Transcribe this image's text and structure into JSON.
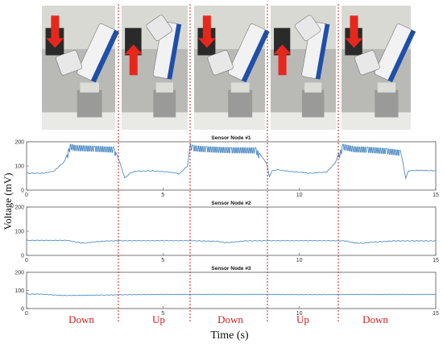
{
  "chart_data": [
    {
      "type": "line",
      "title": "Sensor Node #1",
      "xlim": [
        0,
        15
      ],
      "ylim": [
        0,
        200
      ],
      "xticks": [
        "0",
        "5",
        "10",
        "15"
      ],
      "yticks": [
        "0",
        "100",
        "200"
      ],
      "series": [
        {
          "x": [
            0,
            0.6,
            1.0,
            1.4,
            1.6,
            1.8,
            2.5,
            3.2,
            3.4,
            3.6,
            3.8,
            4.0,
            4.6,
            5.2,
            5.6,
            5.9,
            6.0,
            6.1,
            6.3,
            6.6,
            7.0,
            7.5,
            8.4,
            8.8,
            8.9,
            9.0,
            9.2,
            9.6,
            10.4,
            11.0,
            11.3,
            11.6,
            11.8,
            12.0,
            12.5,
            13.2,
            13.7,
            13.8,
            13.9,
            14.0,
            14.4,
            15.0
          ],
          "y": [
            70,
            70,
            78,
            120,
            190,
            185,
            182,
            178,
            120,
            50,
            70,
            78,
            80,
            75,
            68,
            100,
            190,
            185,
            182,
            180,
            178,
            176,
            175,
            110,
            55,
            80,
            85,
            78,
            70,
            75,
            110,
            190,
            185,
            180,
            178,
            172,
            165,
            110,
            50,
            80,
            82,
            80
          ]
        }
      ]
    },
    {
      "type": "line",
      "title": "Sensor Node #2",
      "xlim": [
        0,
        15
      ],
      "ylim": [
        0,
        200
      ],
      "xticks": [
        "0",
        "5",
        "10",
        "15"
      ],
      "yticks": [
        "0",
        "100",
        "200"
      ],
      "series": [
        {
          "x": [
            0,
            1.5,
            1.8,
            2.1,
            2.4,
            3.0,
            4.0,
            6.0,
            7.0,
            7.3,
            7.6,
            8.0,
            9.0,
            11.0,
            11.7,
            12.0,
            12.3,
            12.7,
            13.5,
            15.0
          ],
          "y": [
            62,
            62,
            55,
            50,
            55,
            60,
            61,
            61,
            58,
            53,
            55,
            60,
            61,
            61,
            60,
            52,
            50,
            55,
            60,
            60
          ]
        }
      ]
    },
    {
      "type": "line",
      "title": "Sensor Node #3",
      "xlim": [
        0,
        15
      ],
      "ylim": [
        0,
        200
      ],
      "xticks": [
        "0",
        "5",
        "10",
        "15"
      ],
      "yticks": [
        "0",
        "100",
        "200"
      ],
      "series": [
        {
          "x": [
            0,
            0.5,
            1.0,
            1.4,
            2.0,
            2.6,
            3.5,
            5.0,
            7.0,
            9.0,
            10.0,
            11.0,
            12.0,
            13.0,
            15.0
          ],
          "y": [
            80,
            80,
            75,
            72,
            73,
            74,
            76,
            78,
            78,
            78,
            77,
            77,
            78,
            78,
            78
          ]
        }
      ]
    }
  ],
  "ylabel": "Voltage (mV)",
  "xlabel": "Time (s)",
  "phases": [
    "Down",
    "Up",
    "Down",
    "Up",
    "Down"
  ],
  "colors": {
    "line": "#3b7fbf",
    "divider": "#cc2222",
    "phase_text": "#cc2222",
    "arrow": "#e8271c"
  },
  "photos": [
    {
      "arrow": "down"
    },
    {
      "arrow": "up"
    },
    {
      "arrow": "down"
    },
    {
      "arrow": "up"
    },
    {
      "arrow": "down"
    }
  ]
}
